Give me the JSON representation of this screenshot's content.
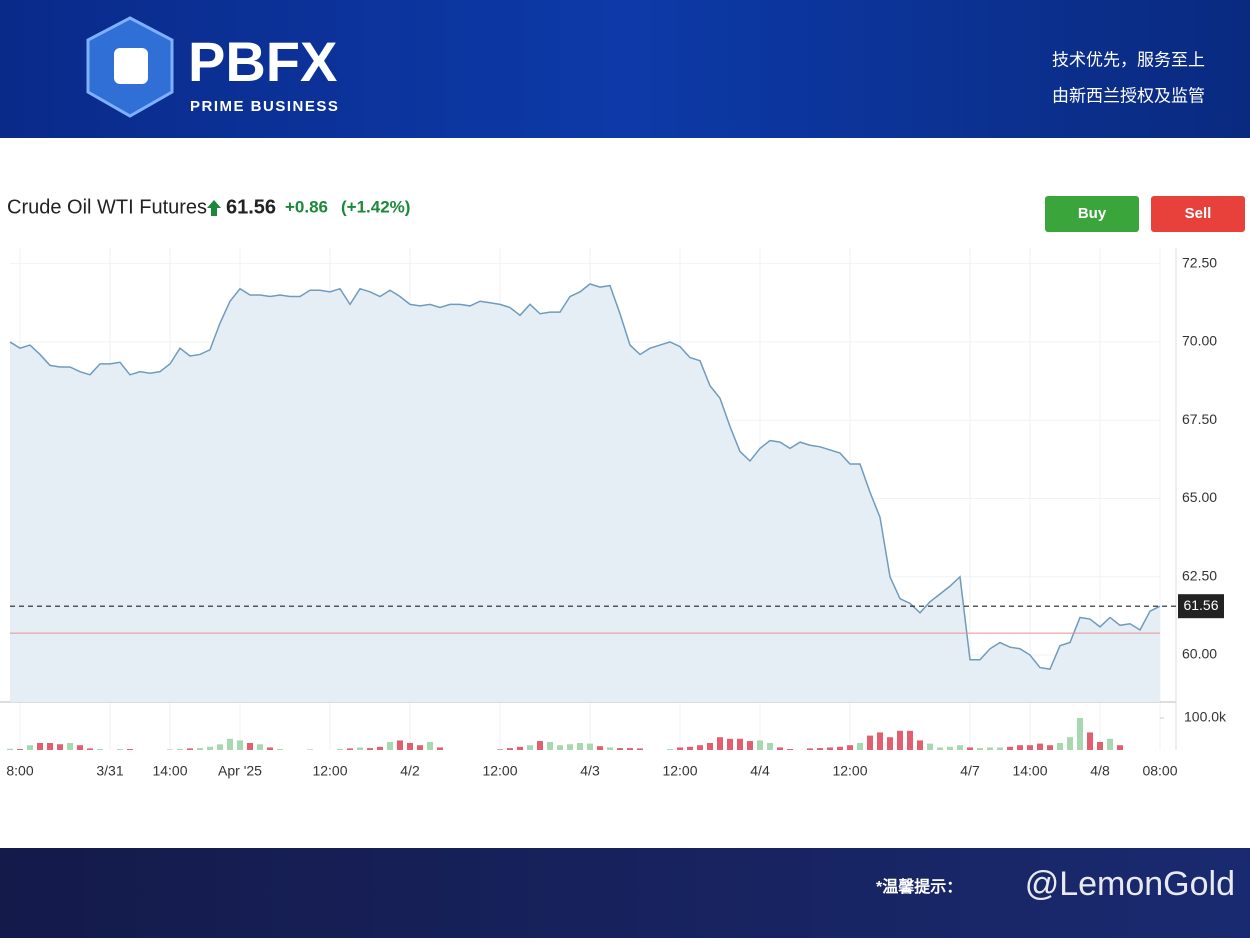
{
  "header": {
    "logo": "PBFX",
    "logo_sub": "PRIME BUSINESS",
    "slogan_1": "技术优先，服务至上",
    "slogan_2": "由新西兰授权及监管"
  },
  "quote": {
    "name": "Crude Oil WTI Futures",
    "price": "61.56",
    "change": "+0.86",
    "change_pct": "(+1.42%)"
  },
  "buttons": {
    "buy": "Buy",
    "sell": "Sell"
  },
  "footer": {
    "notice": "*温馨提示：",
    "watermark": "@LemonGold"
  },
  "chart_data": {
    "type": "area",
    "categories": [
      null,
      "8:00",
      null,
      null,
      null,
      null,
      null,
      null,
      null,
      null,
      "3/31",
      null,
      null,
      null,
      null,
      null,
      "14:00",
      null,
      null,
      null,
      null,
      null,
      null,
      "Apr '25",
      null,
      null,
      null,
      null,
      null,
      null,
      null,
      null,
      "12:00",
      null,
      null,
      null,
      null,
      null,
      null,
      null,
      "4/2",
      null,
      null,
      null,
      null,
      null,
      null,
      null,
      null,
      "12:00",
      null,
      null,
      null,
      null,
      null,
      null,
      null,
      null,
      "4/3",
      null,
      null,
      null,
      null,
      null,
      null,
      null,
      null,
      "12:00",
      null,
      null,
      null,
      null,
      null,
      null,
      null,
      "4/4",
      null,
      null,
      null,
      null,
      null,
      null,
      null,
      null,
      "12:00",
      null,
      null,
      null,
      null,
      null,
      null,
      null,
      null,
      null,
      null,
      null,
      "4/7",
      null,
      null,
      null,
      null,
      null,
      "14:00",
      null,
      null,
      null,
      null,
      null,
      null,
      "4/8",
      null,
      null,
      null,
      null,
      null,
      "08:00"
    ],
    "series": [
      {
        "name": "Price",
        "color": "#6f9bbf",
        "fill": "#e6eef5",
        "values": [
          70.0,
          69.8,
          69.9,
          69.6,
          69.25,
          69.2,
          69.2,
          69.05,
          68.95,
          69.3,
          69.3,
          69.35,
          68.95,
          69.05,
          69.0,
          69.05,
          69.3,
          69.8,
          69.55,
          69.6,
          69.75,
          70.6,
          71.3,
          71.7,
          71.5,
          71.5,
          71.45,
          71.5,
          71.45,
          71.45,
          71.65,
          71.65,
          71.6,
          71.7,
          71.2,
          71.7,
          71.6,
          71.45,
          71.65,
          71.45,
          71.2,
          71.15,
          71.2,
          71.1,
          71.2,
          71.2,
          71.15,
          71.3,
          71.25,
          71.2,
          71.1,
          70.85,
          71.2,
          70.9,
          70.95,
          70.95,
          71.45,
          71.6,
          71.85,
          71.75,
          71.8,
          70.9,
          69.9,
          69.6,
          69.8,
          69.9,
          70.0,
          69.85,
          69.5,
          69.4,
          68.6,
          68.2,
          67.3,
          66.5,
          66.2,
          66.6,
          66.85,
          66.8,
          66.6,
          66.8,
          66.7,
          66.65,
          66.55,
          66.45,
          66.1,
          66.1,
          65.2,
          64.4,
          62.5,
          61.8,
          61.65,
          61.35,
          61.7,
          61.95,
          62.2,
          62.5,
          59.85,
          59.85,
          60.2,
          60.4,
          60.25,
          60.2,
          60.0,
          59.6,
          59.55,
          60.3,
          60.4,
          61.2,
          61.15,
          60.9,
          61.2,
          60.95,
          61.0,
          60.8,
          61.4,
          61.56
        ]
      },
      {
        "name": "Volume",
        "up_color": "#a8d8b0",
        "down_color": "#e06070",
        "axis": "y2",
        "values": [
          4000,
          3000,
          15000,
          22000,
          22000,
          18000,
          22000,
          15000,
          5000,
          3000,
          0,
          3000,
          3000,
          0,
          0,
          0,
          2000,
          3000,
          5000,
          6000,
          10000,
          18000,
          35000,
          30000,
          22000,
          18000,
          8000,
          3000,
          0,
          0,
          2000,
          0,
          0,
          3000,
          5000,
          8000,
          6000,
          10000,
          25000,
          30000,
          22000,
          15000,
          25000,
          8000,
          0,
          0,
          0,
          0,
          0,
          2000,
          6000,
          10000,
          15000,
          28000,
          25000,
          15000,
          18000,
          22000,
          20000,
          12000,
          8000,
          6000,
          6000,
          5000,
          0,
          0,
          3000,
          8000,
          10000,
          15000,
          22000,
          40000,
          35000,
          35000,
          28000,
          30000,
          22000,
          8000,
          3000,
          0,
          5000,
          6000,
          8000,
          10000,
          15000,
          22000,
          45000,
          55000,
          40000,
          60000,
          60000,
          30000,
          20000,
          8000,
          10000,
          15000,
          8000,
          6000,
          8000,
          8000,
          10000,
          15000,
          15000,
          20000,
          15000,
          22000,
          40000,
          100000,
          55000,
          25000,
          35000,
          15000,
          0,
          0,
          0,
          0
        ]
      }
    ],
    "ylim": [
      58.5,
      73.0
    ],
    "yticks": [
      {
        "value": 60,
        "label": "60.00"
      },
      {
        "value": 62.5,
        "label": "62.50"
      },
      {
        "value": 65,
        "label": "65.00"
      },
      {
        "value": 67.5,
        "label": "67.50"
      },
      {
        "value": 70,
        "label": "70.00"
      },
      {
        "value": 72.5,
        "label": "72.50"
      }
    ],
    "y2lim": [
      0,
      150000
    ],
    "y2ticks": [
      {
        "value": 100000,
        "label": "100.0k"
      }
    ],
    "last_price": 61.56,
    "last_price_color": "#222222",
    "prev_close": 60.7,
    "prev_close_color": "#e89090",
    "grid": true
  }
}
